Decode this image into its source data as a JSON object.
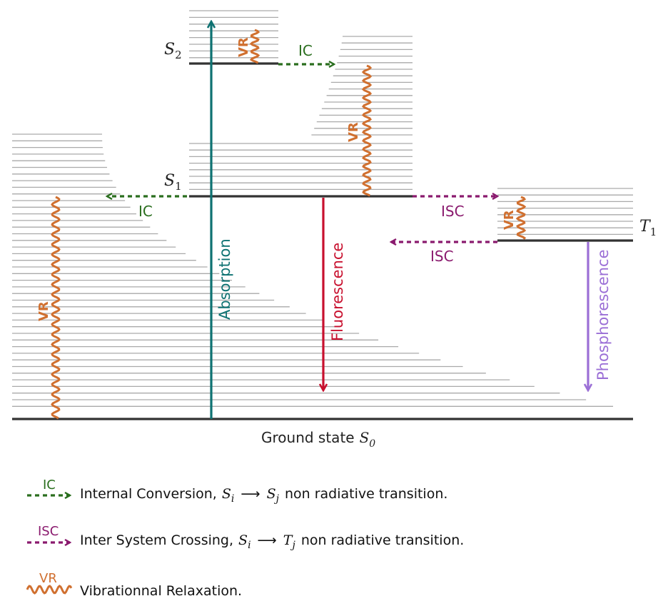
{
  "colors": {
    "ic": "#2a6e1e",
    "isc": "#8a1a6e",
    "vr": "#d07030",
    "absorption": "#0e7272",
    "fluorescence": "#c8102e",
    "phosphorescence": "#9b6fd6",
    "level_main": "#333333",
    "level_faint": "#aaaaaa"
  },
  "states": {
    "s2": {
      "symbol": "S",
      "subscript": "2"
    },
    "s1": {
      "symbol": "S",
      "subscript": "1"
    },
    "t1": {
      "symbol": "T",
      "subscript": "1"
    },
    "ground": {
      "label": "Ground state",
      "symbol": "S",
      "subscript": "0"
    }
  },
  "transitions": {
    "absorption": "Absorption",
    "fluorescence": "Fluorescence",
    "phosphorescence": "Phosphorescence",
    "ic": "IC",
    "isc": "ISC",
    "vr": "VR"
  },
  "legend": [
    {
      "key": "ic",
      "tag": "IC",
      "text_before": "Internal Conversion,",
      "from_sym": "S",
      "from_sub": "i",
      "to_sym": "S",
      "to_sub": "j",
      "text_after": "non radiative transition."
    },
    {
      "key": "isc",
      "tag": "ISC",
      "text_before": "Inter System Crossing,",
      "from_sym": "S",
      "from_sub": "i",
      "to_sym": "T",
      "to_sub": "j",
      "text_after": "non radiative transition."
    },
    {
      "key": "vr",
      "tag": "VR",
      "text_before": "Vibrationnal Relaxation."
    }
  ],
  "arrow_symbol": "⟶"
}
